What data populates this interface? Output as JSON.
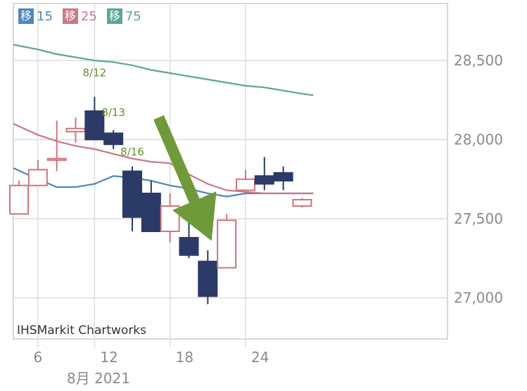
{
  "legend": [
    {
      "tag": "移",
      "value": "15",
      "color": "#4e87b8"
    },
    {
      "tag": "移",
      "value": "25",
      "color": "#c97a87"
    },
    {
      "tag": "移",
      "value": "75",
      "color": "#5fa39b"
    }
  ],
  "credit": "IHSMarkit Chartworks",
  "chart_data": {
    "type": "candlestick",
    "x_ticks": [
      "6",
      "12",
      "18",
      "24"
    ],
    "x_sublabel": "8月 2021",
    "y_ticks": [
      "28,500",
      "28,000",
      "27,500",
      "27,000"
    ],
    "y_tick_values": [
      28500,
      28000,
      27500,
      27000
    ],
    "ylim": [
      26740,
      28860
    ],
    "xlim": [
      3.7,
      26.7
    ],
    "up_color": "#d0747f",
    "down_color": "#2b3a66",
    "candles": [
      {
        "day": 4,
        "open": 27530,
        "close": 27710,
        "high": 27740,
        "low": 27530
      },
      {
        "day": 5,
        "open": 27710,
        "close": 27810,
        "high": 27870,
        "low": 27710
      },
      {
        "day": 6,
        "open": 27870,
        "close": 27880,
        "high": 28120,
        "low": 27800
      },
      {
        "day": 7,
        "open": 28050,
        "close": 28070,
        "high": 28140,
        "low": 27980
      },
      {
        "day": 8,
        "open": 28180,
        "close": 28000,
        "high": 28270,
        "low": 28000
      },
      {
        "day": 9,
        "open": 28040,
        "close": 27970,
        "high": 28060,
        "low": 27940
      },
      {
        "day": 10,
        "open": 27800,
        "close": 27510,
        "high": 27830,
        "low": 27420
      },
      {
        "day": 11,
        "open": 27660,
        "close": 27420,
        "high": 27740,
        "low": 27420
      },
      {
        "day": 12,
        "open": 27420,
        "close": 27580,
        "high": 27660,
        "low": 27350
      },
      {
        "day": 13,
        "open": 27380,
        "close": 27270,
        "high": 27500,
        "low": 27250
      },
      {
        "day": 14,
        "open": 27230,
        "close": 27010,
        "high": 27300,
        "low": 26960
      },
      {
        "day": 15,
        "open": 27190,
        "close": 27490,
        "high": 27530,
        "low": 27190
      },
      {
        "day": 16,
        "open": 27680,
        "close": 27750,
        "high": 27810,
        "low": 27680
      },
      {
        "day": 17,
        "open": 27770,
        "close": 27720,
        "high": 27890,
        "low": 27680
      },
      {
        "day": 18,
        "open": 27790,
        "close": 27740,
        "high": 27830,
        "low": 27680
      },
      {
        "day": 19,
        "open": 27580,
        "close": 27620,
        "high": 27630,
        "low": 27570
      }
    ],
    "series": [
      {
        "name": "15",
        "color": "#4e87b8",
        "x": [
          3.7,
          5,
          6,
          7,
          8,
          9,
          10,
          11,
          12,
          13,
          14,
          15,
          16,
          17,
          18,
          19,
          19.6
        ],
        "y": [
          27820,
          27750,
          27700,
          27700,
          27720,
          27770,
          27760,
          27740,
          27710,
          27690,
          27660,
          27640,
          27660,
          27660,
          27660,
          27660,
          27660
        ]
      },
      {
        "name": "25",
        "color": "#c97a87",
        "x": [
          3.7,
          5,
          6,
          7,
          8,
          9,
          10,
          11,
          12,
          13,
          14,
          15,
          16,
          17,
          18,
          19,
          19.6
        ],
        "y": [
          28100,
          28030,
          27990,
          27960,
          27940,
          27910,
          27880,
          27860,
          27850,
          27780,
          27720,
          27680,
          27670,
          27660,
          27660,
          27660,
          27660
        ]
      },
      {
        "name": "75",
        "color": "#5fa39b",
        "x": [
          3.7,
          5,
          6,
          7,
          8,
          9,
          10,
          11,
          12,
          13,
          14,
          15,
          16,
          17,
          18,
          19,
          19.6
        ],
        "y": [
          28600,
          28570,
          28540,
          28520,
          28500,
          28490,
          28470,
          28440,
          28420,
          28400,
          28380,
          28360,
          28340,
          28330,
          28310,
          28290,
          28280
        ]
      }
    ],
    "annotations": [
      {
        "label": "8/12",
        "day": 8,
        "value": 28400
      },
      {
        "label": "8/13",
        "day": 9,
        "value": 28150
      },
      {
        "label": "8/16",
        "day": 10,
        "value": 27900
      }
    ],
    "arrow": {
      "from_day": 11.4,
      "from_value": 28140,
      "to_day": 14.2,
      "to_value": 27360,
      "color": "#6e9a3a"
    },
    "grid": true
  }
}
